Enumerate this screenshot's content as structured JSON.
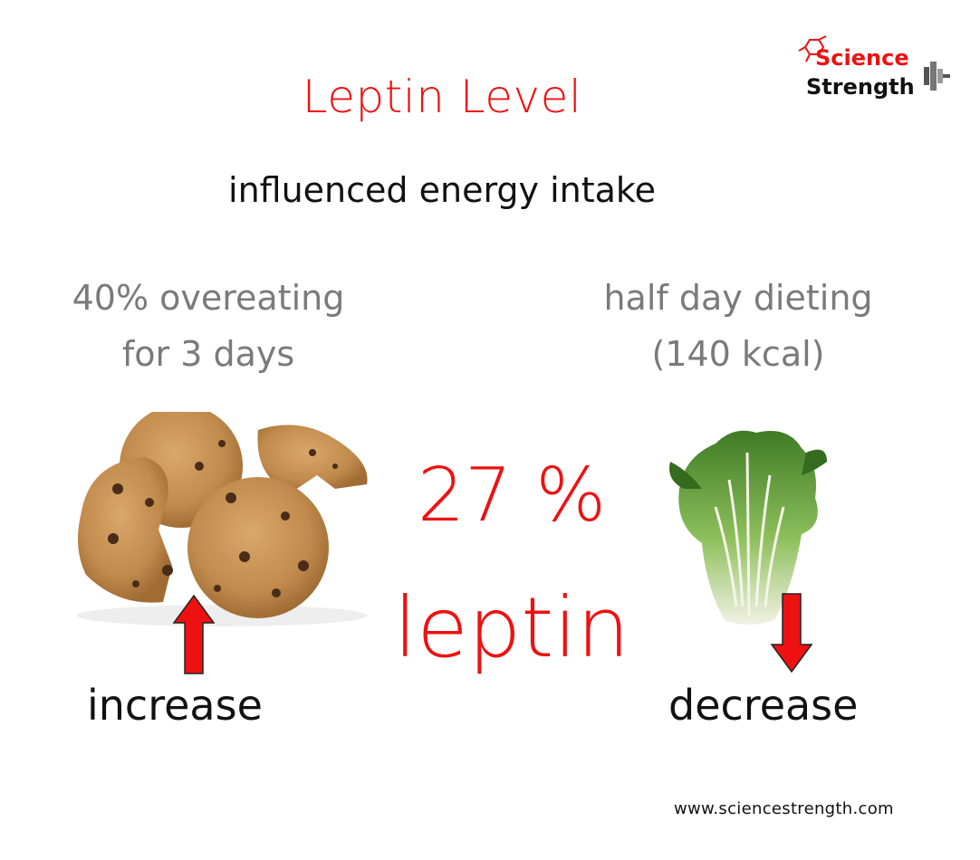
{
  "colors": {
    "accent": "#ee1111",
    "muted": "#7a7a7a",
    "text": "#111111"
  },
  "title": "Leptin Level",
  "subtitle": "influenced energy intake",
  "left_condition": {
    "line1": "40% overeating",
    "line2": "for 3 days"
  },
  "right_condition": {
    "line1": "half day dieting",
    "line2": "(140 kcal)"
  },
  "change_value": "27 %",
  "change_label": "leptin",
  "left_direction": "increase",
  "right_direction": "decrease",
  "logo": {
    "line1": "Science",
    "line2": "Strength"
  },
  "website": "www.sciencestrength.com",
  "icons": {
    "left_image": "cookies-image",
    "right_image": "cabbage-image",
    "up": "up-arrow-icon",
    "down": "down-arrow-icon"
  }
}
